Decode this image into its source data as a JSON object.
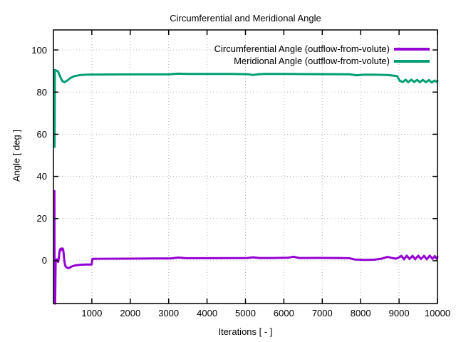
{
  "chart_data": {
    "type": "line",
    "title": "Circumferential and Meridional Angle",
    "xlabel": "Iterations [ - ]",
    "ylabel": "Angle [ deg ]",
    "xlim": [
      0,
      10000
    ],
    "ylim": [
      -20.3,
      109.5
    ],
    "xticks": [
      1000,
      2000,
      3000,
      4000,
      5000,
      6000,
      7000,
      8000,
      9000,
      10000
    ],
    "yticks": [
      0,
      20,
      40,
      60,
      80,
      100
    ],
    "grid": true,
    "grid_color": "#b5b5b5",
    "border_color": "#000000",
    "legend_position": "top-right-inside",
    "series": [
      {
        "name": "Circumferential Angle (outflow-from-volute)",
        "color": "#9400d3",
        "points": [
          [
            18,
            33
          ],
          [
            26,
            33
          ],
          [
            30,
            -20.3
          ],
          [
            44,
            -20.3
          ],
          [
            52,
            -8
          ],
          [
            60,
            0.3
          ],
          [
            85,
            0.7
          ],
          [
            105,
            0.4
          ],
          [
            120,
            -0.6
          ],
          [
            135,
            0.5
          ],
          [
            150,
            3.0
          ],
          [
            165,
            5.0
          ],
          [
            180,
            5.6
          ],
          [
            195,
            5.0
          ],
          [
            205,
            5.8
          ],
          [
            220,
            5.4
          ],
          [
            235,
            5.8
          ],
          [
            250,
            5.5
          ],
          [
            262,
            4.2
          ],
          [
            280,
            0.5
          ],
          [
            305,
            -2.2
          ],
          [
            340,
            -3.2
          ],
          [
            400,
            -3.5
          ],
          [
            470,
            -2.8
          ],
          [
            560,
            -2.2
          ],
          [
            700,
            -1.9
          ],
          [
            850,
            -1.8
          ],
          [
            995,
            -1.8
          ],
          [
            1015,
            0.9
          ],
          [
            1400,
            0.95
          ],
          [
            2000,
            1.0
          ],
          [
            2600,
            1.05
          ],
          [
            3050,
            1.1
          ],
          [
            3250,
            1.5
          ],
          [
            3450,
            1.2
          ],
          [
            4000,
            1.2
          ],
          [
            4600,
            1.25
          ],
          [
            5050,
            1.3
          ],
          [
            5200,
            1.65
          ],
          [
            5350,
            1.3
          ],
          [
            5700,
            1.3
          ],
          [
            6100,
            1.4
          ],
          [
            6250,
            1.9
          ],
          [
            6400,
            1.3
          ],
          [
            6900,
            1.35
          ],
          [
            7400,
            1.3
          ],
          [
            7700,
            1.2
          ],
          [
            7850,
            0.6
          ],
          [
            8100,
            0.4
          ],
          [
            8350,
            0.5
          ],
          [
            8550,
            1.0
          ],
          [
            8700,
            1.8
          ],
          [
            8820,
            1.3
          ],
          [
            8920,
            1.0
          ],
          [
            9000,
            1.6
          ],
          [
            9060,
            2.3
          ],
          [
            9130,
            0.7
          ],
          [
            9200,
            2.4
          ],
          [
            9270,
            0.8
          ],
          [
            9350,
            2.3
          ],
          [
            9420,
            0.7
          ],
          [
            9500,
            2.4
          ],
          [
            9570,
            0.8
          ],
          [
            9650,
            2.3
          ],
          [
            9720,
            0.7
          ],
          [
            9800,
            2.4
          ],
          [
            9870,
            0.9
          ],
          [
            9930,
            2.2
          ],
          [
            9970,
            1.0
          ],
          [
            10000,
            1.8
          ]
        ]
      },
      {
        "name": "Meridional Angle (outflow-from-volute)",
        "color": "#009e73",
        "points": [
          [
            30,
            54
          ],
          [
            38,
            90.5
          ],
          [
            60,
            90.3
          ],
          [
            120,
            89.8
          ],
          [
            170,
            87.5
          ],
          [
            230,
            85.3
          ],
          [
            290,
            84.7
          ],
          [
            360,
            85.5
          ],
          [
            450,
            86.8
          ],
          [
            550,
            87.6
          ],
          [
            700,
            88.1
          ],
          [
            900,
            88.3
          ],
          [
            1200,
            88.35
          ],
          [
            1800,
            88.4
          ],
          [
            2400,
            88.4
          ],
          [
            3000,
            88.4
          ],
          [
            3250,
            88.75
          ],
          [
            3500,
            88.65
          ],
          [
            4000,
            88.6
          ],
          [
            4600,
            88.6
          ],
          [
            5050,
            88.5
          ],
          [
            5200,
            88.15
          ],
          [
            5350,
            88.5
          ],
          [
            5500,
            88.6
          ],
          [
            6000,
            88.6
          ],
          [
            6600,
            88.55
          ],
          [
            7200,
            88.5
          ],
          [
            7700,
            88.45
          ],
          [
            7900,
            88.0
          ],
          [
            8100,
            88.3
          ],
          [
            8400,
            88.25
          ],
          [
            8700,
            88.1
          ],
          [
            8950,
            87.6
          ],
          [
            9020,
            85.3
          ],
          [
            9100,
            84.8
          ],
          [
            9170,
            85.9
          ],
          [
            9240,
            84.7
          ],
          [
            9320,
            85.9
          ],
          [
            9390,
            84.8
          ],
          [
            9470,
            85.8
          ],
          [
            9540,
            84.7
          ],
          [
            9620,
            85.8
          ],
          [
            9700,
            84.7
          ],
          [
            9780,
            85.7
          ],
          [
            9850,
            84.6
          ],
          [
            9930,
            85.5
          ],
          [
            9980,
            84.9
          ],
          [
            10000,
            85.3
          ]
        ]
      }
    ]
  }
}
